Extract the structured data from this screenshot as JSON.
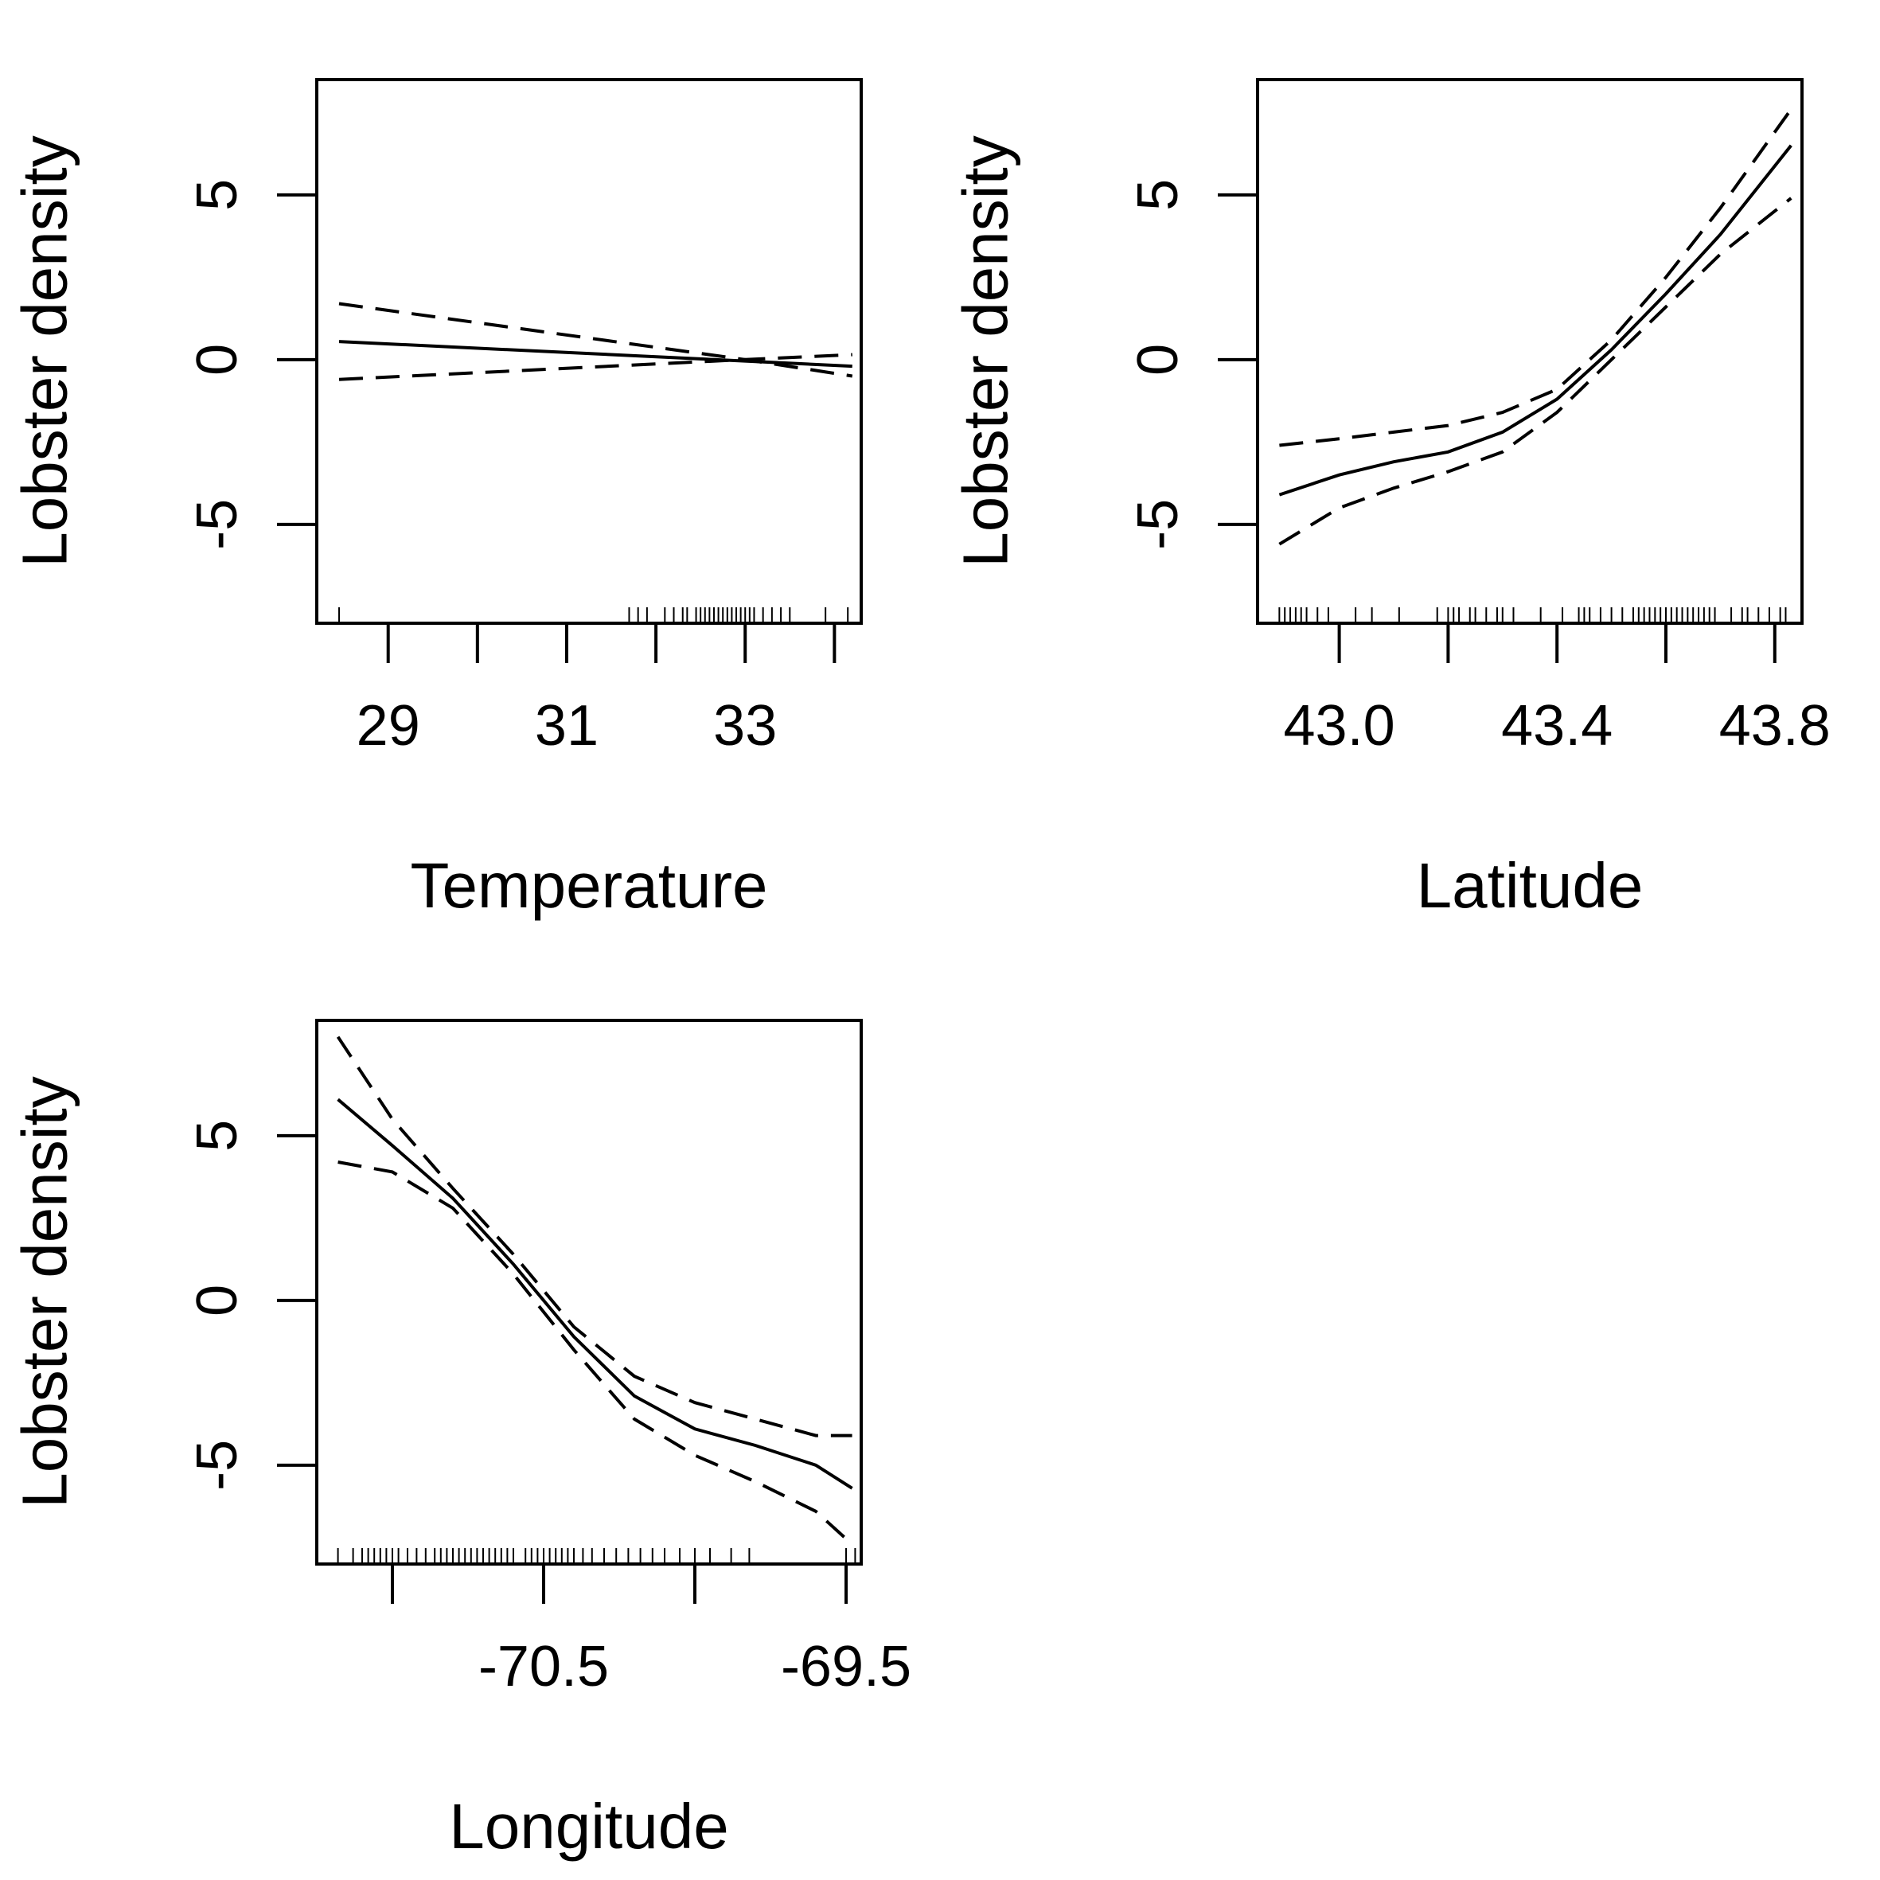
{
  "chart_data": [
    {
      "type": "line",
      "xlabel": "Temperature",
      "ylabel": "Lobster density",
      "xlim": [
        28.2,
        34.3
      ],
      "ylim": [
        -8,
        8.5
      ],
      "xticks": [
        29,
        30,
        31,
        32,
        33,
        34
      ],
      "xtick_labels": [
        "29",
        "",
        "31",
        "",
        "33",
        ""
      ],
      "yticks": [
        -5,
        0,
        5
      ],
      "ytick_labels": [
        "-5",
        "0",
        "5"
      ],
      "grid": false,
      "fit": {
        "x": [
          28.45,
          34.2
        ],
        "y": [
          0.55,
          -0.2
        ]
      },
      "upper": {
        "x": [
          28.45,
          33.0,
          34.2
        ],
        "y": [
          1.7,
          0.0,
          -0.5
        ]
      },
      "lower": {
        "x": [
          28.45,
          33.0,
          34.2
        ],
        "y": [
          -0.6,
          0.0,
          0.15
        ]
      },
      "rug": [
        28.45,
        31.7,
        31.8,
        31.9,
        32.1,
        32.2,
        32.3,
        32.35,
        32.45,
        32.5,
        32.55,
        32.6,
        32.65,
        32.7,
        32.75,
        32.8,
        32.85,
        32.9,
        32.95,
        33.0,
        33.05,
        33.1,
        33.2,
        33.3,
        33.4,
        33.5,
        33.9,
        34.15
      ]
    },
    {
      "type": "line",
      "xlabel": "Latitude",
      "ylabel": "Lobster density",
      "xlim": [
        42.85,
        43.85
      ],
      "ylim": [
        -8,
        8.5
      ],
      "xticks": [
        43.0,
        43.2,
        43.4,
        43.6,
        43.8
      ],
      "xtick_labels": [
        "43.0",
        "",
        "43.4",
        "",
        "43.8"
      ],
      "yticks": [
        -5,
        0,
        5
      ],
      "ytick_labels": [
        "-5",
        "0",
        "5"
      ],
      "grid": false,
      "fit": {
        "x": [
          42.89,
          43.0,
          43.1,
          43.2,
          43.3,
          43.4,
          43.5,
          43.6,
          43.7,
          43.83
        ],
        "y": [
          -4.1,
          -3.5,
          -3.1,
          -2.8,
          -2.2,
          -1.2,
          0.3,
          2.0,
          3.8,
          6.5
        ]
      },
      "upper": {
        "x": [
          42.89,
          43.0,
          43.1,
          43.2,
          43.3,
          43.4,
          43.5,
          43.6,
          43.7,
          43.83
        ],
        "y": [
          -2.6,
          -2.4,
          -2.2,
          -2.0,
          -1.6,
          -0.9,
          0.6,
          2.5,
          4.6,
          7.6
        ]
      },
      "lower": {
        "x": [
          42.89,
          43.0,
          43.1,
          43.2,
          43.3,
          43.4,
          43.5,
          43.6,
          43.7,
          43.83
        ],
        "y": [
          -5.6,
          -4.5,
          -3.9,
          -3.4,
          -2.8,
          -1.6,
          0.0,
          1.6,
          3.2,
          4.9
        ]
      },
      "rug": [
        42.89,
        42.9,
        42.91,
        42.92,
        42.93,
        42.94,
        42.96,
        42.98,
        43.03,
        43.06,
        43.11,
        43.18,
        43.2,
        43.21,
        43.22,
        43.24,
        43.25,
        43.27,
        43.29,
        43.3,
        43.32,
        43.37,
        43.41,
        43.44,
        43.45,
        43.46,
        43.48,
        43.5,
        43.52,
        43.54,
        43.55,
        43.56,
        43.57,
        43.58,
        43.59,
        43.6,
        43.61,
        43.62,
        43.63,
        43.64,
        43.65,
        43.66,
        43.67,
        43.68,
        43.69,
        43.72,
        43.74,
        43.75,
        43.77,
        43.79,
        43.81,
        43.82
      ]
    },
    {
      "type": "line",
      "xlabel": "Longitude",
      "ylabel": "Lobster density",
      "xlim": [
        -71.25,
        -69.45
      ],
      "ylim": [
        -8,
        8.5
      ],
      "xticks": [
        -71.0,
        -70.5,
        -70.0,
        -69.5
      ],
      "xtick_labels": [
        "",
        "-70.5",
        "",
        "-69.5"
      ],
      "yticks": [
        -5,
        0,
        5
      ],
      "ytick_labels": [
        "-5",
        "0",
        "5"
      ],
      "grid": false,
      "fit": {
        "x": [
          -71.18,
          -71.0,
          -70.8,
          -70.6,
          -70.4,
          -70.2,
          -70.0,
          -69.8,
          -69.6,
          -69.48
        ],
        "y": [
          6.1,
          4.7,
          3.1,
          1.1,
          -1.1,
          -2.9,
          -3.9,
          -4.4,
          -5.0,
          -5.7
        ]
      },
      "upper": {
        "x": [
          -71.18,
          -71.0,
          -70.8,
          -70.6,
          -70.4,
          -70.2,
          -70.0,
          -69.8,
          -69.6,
          -69.48
        ],
        "y": [
          8.0,
          5.5,
          3.4,
          1.4,
          -0.8,
          -2.3,
          -3.1,
          -3.6,
          -4.1,
          -4.1
        ]
      },
      "lower": {
        "x": [
          -71.18,
          -71.0,
          -70.8,
          -70.6,
          -70.4,
          -70.2,
          -70.0,
          -69.8,
          -69.6,
          -69.48
        ],
        "y": [
          4.2,
          3.9,
          2.8,
          0.8,
          -1.5,
          -3.6,
          -4.7,
          -5.5,
          -6.4,
          -7.4
        ]
      },
      "rug": [
        -71.18,
        -71.13,
        -71.1,
        -71.08,
        -71.06,
        -71.04,
        -71.02,
        -71.0,
        -70.98,
        -70.95,
        -70.92,
        -70.89,
        -70.86,
        -70.84,
        -70.82,
        -70.8,
        -70.78,
        -70.76,
        -70.74,
        -70.72,
        -70.7,
        -70.68,
        -70.66,
        -70.64,
        -70.62,
        -70.6,
        -70.56,
        -70.54,
        -70.52,
        -70.5,
        -70.48,
        -70.46,
        -70.44,
        -70.42,
        -70.4,
        -70.37,
        -70.34,
        -70.3,
        -70.26,
        -70.22,
        -70.18,
        -70.14,
        -70.1,
        -70.05,
        -70.0,
        -69.95,
        -69.88,
        -69.82,
        -69.5,
        -69.47
      ]
    }
  ]
}
